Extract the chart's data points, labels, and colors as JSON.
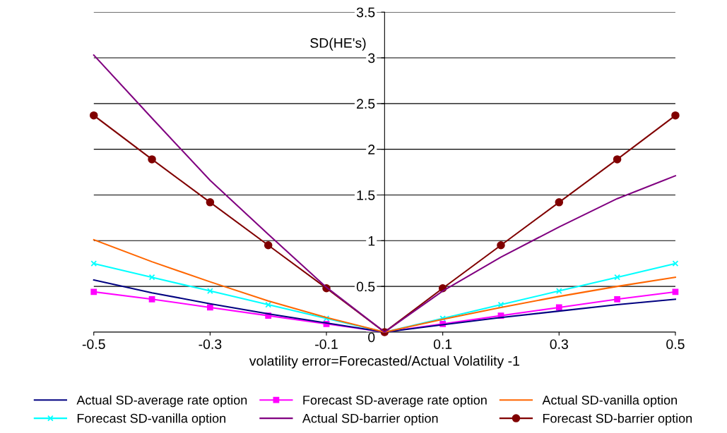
{
  "chart_data": {
    "type": "line",
    "xlabel": "volatility error=Forecasted/Actual Volatility -1",
    "ylabel": "SD(HE's)",
    "x": [
      -0.5,
      -0.4,
      -0.3,
      -0.2,
      -0.1,
      0,
      0.1,
      0.2,
      0.3,
      0.4,
      0.5
    ],
    "xlim": [
      -0.5,
      0.5
    ],
    "xticks": [
      -0.5,
      -0.3,
      -0.1,
      0.1,
      0.3,
      0.5
    ],
    "ylim": [
      0,
      3.5
    ],
    "yticks": [
      0,
      0.5,
      1,
      1.5,
      2,
      2.5,
      3,
      3.5
    ],
    "grid": "y",
    "legend": "bottom",
    "series": [
      {
        "name": "Actual SD-average rate option",
        "color": "#000080",
        "marker": "none",
        "values": [
          0.57,
          0.43,
          0.31,
          0.2,
          0.1,
          0,
          0.08,
          0.16,
          0.23,
          0.3,
          0.36
        ]
      },
      {
        "name": "Forecast SD-average rate option",
        "color": "#ff00ff",
        "marker": "square",
        "values": [
          0.44,
          0.36,
          0.27,
          0.18,
          0.09,
          0,
          0.09,
          0.18,
          0.27,
          0.36,
          0.44
        ]
      },
      {
        "name": "Actual SD-vanilla option",
        "color": "#ff6600",
        "marker": "none",
        "values": [
          1.01,
          0.77,
          0.55,
          0.34,
          0.16,
          0,
          0.14,
          0.27,
          0.39,
          0.5,
          0.6
        ]
      },
      {
        "name": "Forecast SD-vanilla option",
        "color": "#00ffff",
        "marker": "cross",
        "values": [
          0.75,
          0.6,
          0.45,
          0.3,
          0.15,
          0,
          0.15,
          0.3,
          0.45,
          0.6,
          0.75
        ]
      },
      {
        "name": "Actual SD-barrier option",
        "color": "#800080",
        "marker": "none",
        "values": [
          3.03,
          2.34,
          1.66,
          1.07,
          0.49,
          0,
          0.45,
          0.82,
          1.15,
          1.46,
          1.71
        ]
      },
      {
        "name": "Forecast SD-barrier option",
        "color": "#800000",
        "marker": "circle",
        "values": [
          2.37,
          1.89,
          1.42,
          0.95,
          0.48,
          0,
          0.48,
          0.95,
          1.42,
          1.89,
          2.37
        ]
      }
    ]
  }
}
